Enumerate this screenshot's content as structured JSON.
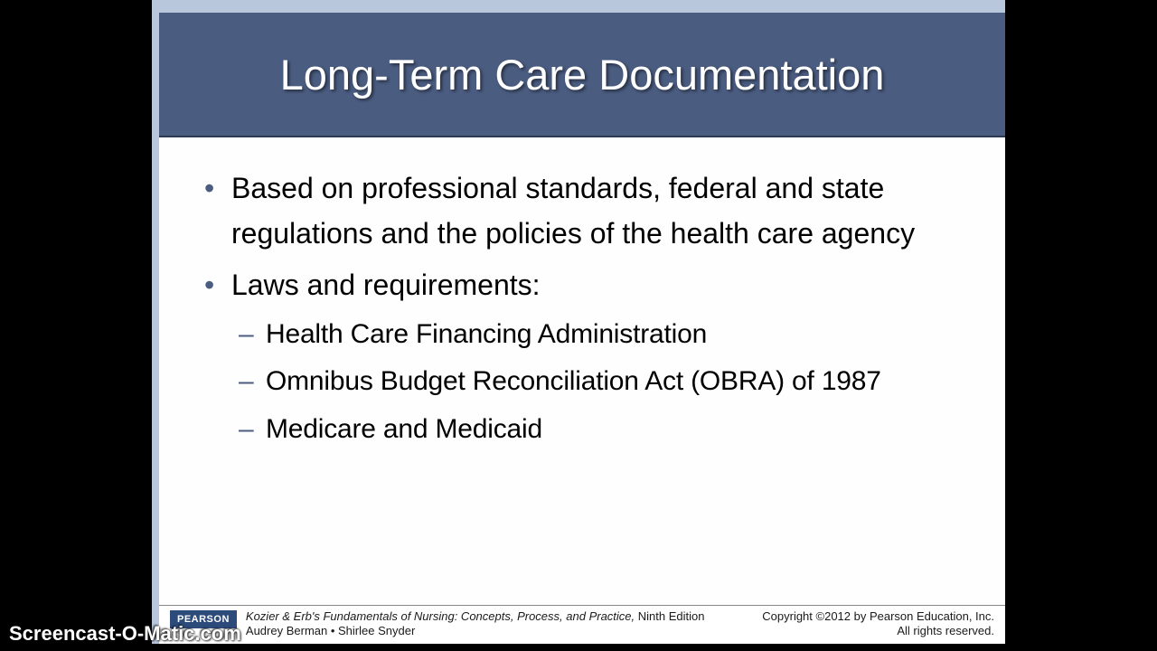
{
  "colors": {
    "page_bg": "#000000",
    "stage_bg": "#b8c7db",
    "slide_bg": "#ffffff",
    "title_bg": "#4a5c80",
    "title_fg": "#ffffff",
    "bullet_color": "#4a5c80",
    "body_text": "#000000",
    "footer_text": "#1a1a1a",
    "logo_bg": "#2d4b7a",
    "logo_fg": "#ffffff"
  },
  "typography": {
    "title_fontsize": 47,
    "body_fontsize": 32,
    "sub_fontsize": 30,
    "footer_fontsize": 13,
    "watermark_fontsize": 22
  },
  "slide": {
    "title": "Long-Term Care Documentation",
    "bullets": [
      {
        "text": "Based on professional standards, federal and state regulations and the policies of the health care agency"
      },
      {
        "text": "Laws and requirements:",
        "sub": [
          "Health Care Financing Administration",
          "Omnibus Budget Reconciliation Act (OBRA) of 1987",
          "Medicare and Medicaid"
        ]
      }
    ]
  },
  "footer": {
    "logo": "PEARSON",
    "book_title": "Kozier & Erb's Fundamentals of Nursing: Concepts, Process, and Practice,",
    "edition": " Ninth Edition",
    "authors": "Audrey Berman • Shirlee Snyder",
    "copyright": "Copyright ©2012 by Pearson Education, Inc.",
    "rights": "All rights reserved."
  },
  "watermark": "Screencast-O-Matic.com"
}
